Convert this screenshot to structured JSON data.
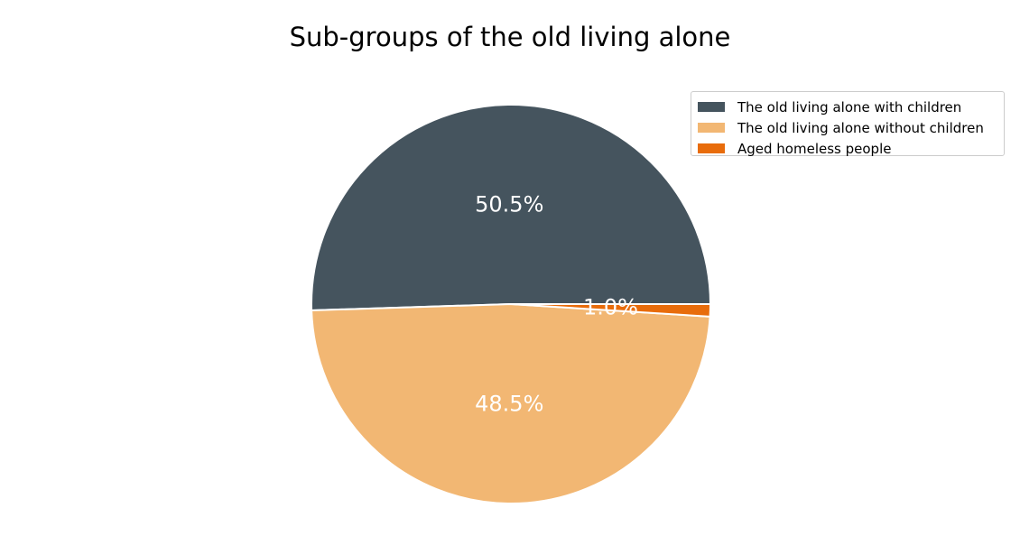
{
  "chart_data": {
    "type": "pie",
    "title": "Sub-groups of the old living alone",
    "slices": [
      {
        "label": "The old living alone with children",
        "value": 50.5,
        "pct_label": "50.5%",
        "color": "#45545e"
      },
      {
        "label": "The old living alone without children",
        "value": 48.5,
        "pct_label": "48.5%",
        "color": "#f2b773"
      },
      {
        "label": "Aged homeless people",
        "value": 1.0,
        "pct_label": "1.0%",
        "color": "#e86c0b"
      }
    ],
    "legend_position": "top-right",
    "start_angle_deg": 0,
    "direction": "counterclockwise",
    "edge_color": "#ffffff"
  }
}
